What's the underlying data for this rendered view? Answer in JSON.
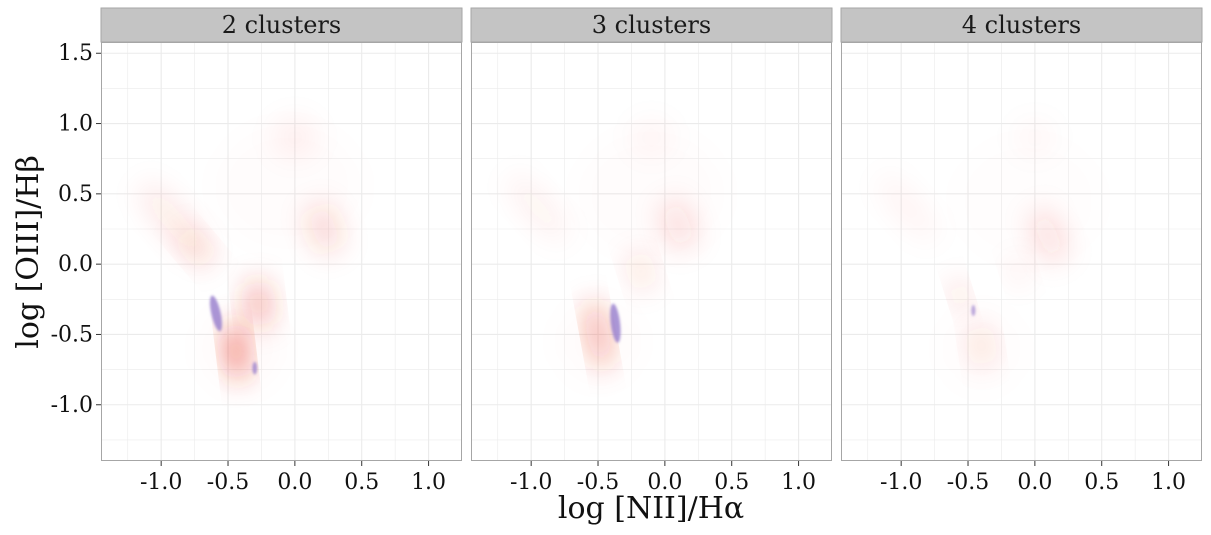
{
  "chart_data": {
    "type": "heatmap",
    "xlabel": "log [NII]/Hα",
    "ylabel": "log [OIII]/Hβ",
    "xlim": [
      -1.45,
      1.25
    ],
    "ylim": [
      -1.4,
      1.58
    ],
    "x_ticks": [
      -1.0,
      -0.5,
      0.0,
      0.5,
      1.0
    ],
    "x_tick_labels": [
      "-1.0",
      "-0.5",
      "0.0",
      "0.5",
      "1.0"
    ],
    "y_ticks": [
      -1.0,
      -0.5,
      0.0,
      0.5,
      1.0,
      1.5
    ],
    "y_tick_labels": [
      "-1.0",
      "-0.5",
      "0.0",
      "0.5",
      "1.0",
      "1.5"
    ],
    "grid": true,
    "legend": "none",
    "colors": {
      "positive": "#e8321e",
      "negative": "#9b82cf",
      "strip_background": "#c4c4c4",
      "gridline": "#ebebeb",
      "panel_border": "#a6a6a6"
    },
    "panels": [
      {
        "strip": "2 clusters",
        "blobs": [
          {
            "x": -0.05,
            "y": 0.55,
            "sx": 0.55,
            "sy": 0.45,
            "rot": 0,
            "alpha": 0.012,
            "kind": "positive"
          },
          {
            "x": -0.4,
            "y": -0.6,
            "sx": 0.3,
            "sy": 0.3,
            "rot": 0,
            "alpha": 0.02,
            "kind": "positive"
          },
          {
            "x": 0.0,
            "y": 0.9,
            "sx": 0.16,
            "sy": 0.14,
            "rot": 0,
            "alpha": 0.06,
            "kind": "positive"
          },
          {
            "x": 0.22,
            "y": 0.25,
            "sx": 0.1,
            "sy": 0.18,
            "rot": 0.35,
            "alpha": 0.22,
            "kind": "positive"
          },
          {
            "x": -0.9,
            "y": 0.3,
            "sx": 0.09,
            "sy": 0.35,
            "rot": 0.72,
            "alpha": 0.12,
            "kind": "positive"
          },
          {
            "x": -0.74,
            "y": 0.12,
            "sx": 0.06,
            "sy": 0.16,
            "rot": 0.7,
            "alpha": 0.22,
            "kind": "positive"
          },
          {
            "x": -0.27,
            "y": -0.28,
            "sx": 0.07,
            "sy": 0.17,
            "rot": 0.12,
            "alpha": 0.5,
            "kind": "positive"
          },
          {
            "x": -0.44,
            "y": -0.62,
            "sx": 0.05,
            "sy": 0.2,
            "rot": 0.12,
            "alpha": 0.95,
            "kind": "positive"
          },
          {
            "x": -0.59,
            "y": -0.35,
            "sx": 0.035,
            "sy": 0.13,
            "rot": 0.22,
            "alpha": 0.85,
            "kind": "negative"
          },
          {
            "x": -0.3,
            "y": -0.74,
            "sx": 0.018,
            "sy": 0.045,
            "rot": 0,
            "alpha": 0.8,
            "kind": "negative"
          }
        ]
      },
      {
        "strip": "3 clusters",
        "blobs": [
          {
            "x": -0.1,
            "y": 0.5,
            "sx": 0.55,
            "sy": 0.45,
            "rot": 0,
            "alpha": 0.01,
            "kind": "positive"
          },
          {
            "x": -0.5,
            "y": -0.55,
            "sx": 0.3,
            "sy": 0.3,
            "rot": 0,
            "alpha": 0.015,
            "kind": "positive"
          },
          {
            "x": -0.1,
            "y": 0.9,
            "sx": 0.15,
            "sy": 0.13,
            "rot": 0,
            "alpha": 0.04,
            "kind": "positive"
          },
          {
            "x": 0.1,
            "y": 0.28,
            "sx": 0.1,
            "sy": 0.18,
            "rot": 0.35,
            "alpha": 0.18,
            "kind": "positive"
          },
          {
            "x": -0.95,
            "y": 0.4,
            "sx": 0.08,
            "sy": 0.3,
            "rot": 0.72,
            "alpha": 0.08,
            "kind": "positive"
          },
          {
            "x": -0.18,
            "y": -0.05,
            "sx": 0.06,
            "sy": 0.14,
            "rot": 0.3,
            "alpha": 0.22,
            "kind": "positive"
          },
          {
            "x": -0.5,
            "y": -0.5,
            "sx": 0.045,
            "sy": 0.24,
            "rot": 0.18,
            "alpha": 0.7,
            "kind": "positive"
          },
          {
            "x": -0.37,
            "y": -0.42,
            "sx": 0.035,
            "sy": 0.14,
            "rot": 0.12,
            "alpha": 0.85,
            "kind": "negative"
          }
        ]
      },
      {
        "strip": "4 clusters",
        "blobs": [
          {
            "x": -0.05,
            "y": 0.45,
            "sx": 0.55,
            "sy": 0.45,
            "rot": 0,
            "alpha": 0.008,
            "kind": "positive"
          },
          {
            "x": -0.4,
            "y": -0.6,
            "sx": 0.3,
            "sy": 0.3,
            "rot": 0,
            "alpha": 0.01,
            "kind": "positive"
          },
          {
            "x": 0.0,
            "y": 0.9,
            "sx": 0.15,
            "sy": 0.13,
            "rot": 0,
            "alpha": 0.03,
            "kind": "positive"
          },
          {
            "x": 0.1,
            "y": 0.2,
            "sx": 0.09,
            "sy": 0.2,
            "rot": 0.4,
            "alpha": 0.18,
            "kind": "positive"
          },
          {
            "x": -0.12,
            "y": -0.05,
            "sx": 0.05,
            "sy": 0.1,
            "rot": 0.3,
            "alpha": 0.12,
            "kind": "positive"
          },
          {
            "x": -0.95,
            "y": 0.4,
            "sx": 0.08,
            "sy": 0.3,
            "rot": 0.72,
            "alpha": 0.06,
            "kind": "positive"
          },
          {
            "x": -0.56,
            "y": -0.22,
            "sx": 0.035,
            "sy": 0.1,
            "rot": 0.3,
            "alpha": 0.35,
            "kind": "positive"
          },
          {
            "x": -0.4,
            "y": -0.58,
            "sx": 0.06,
            "sy": 0.15,
            "rot": 0.15,
            "alpha": 0.22,
            "kind": "positive"
          },
          {
            "x": -0.46,
            "y": -0.33,
            "sx": 0.015,
            "sy": 0.04,
            "rot": 0,
            "alpha": 0.7,
            "kind": "negative"
          }
        ]
      }
    ]
  }
}
